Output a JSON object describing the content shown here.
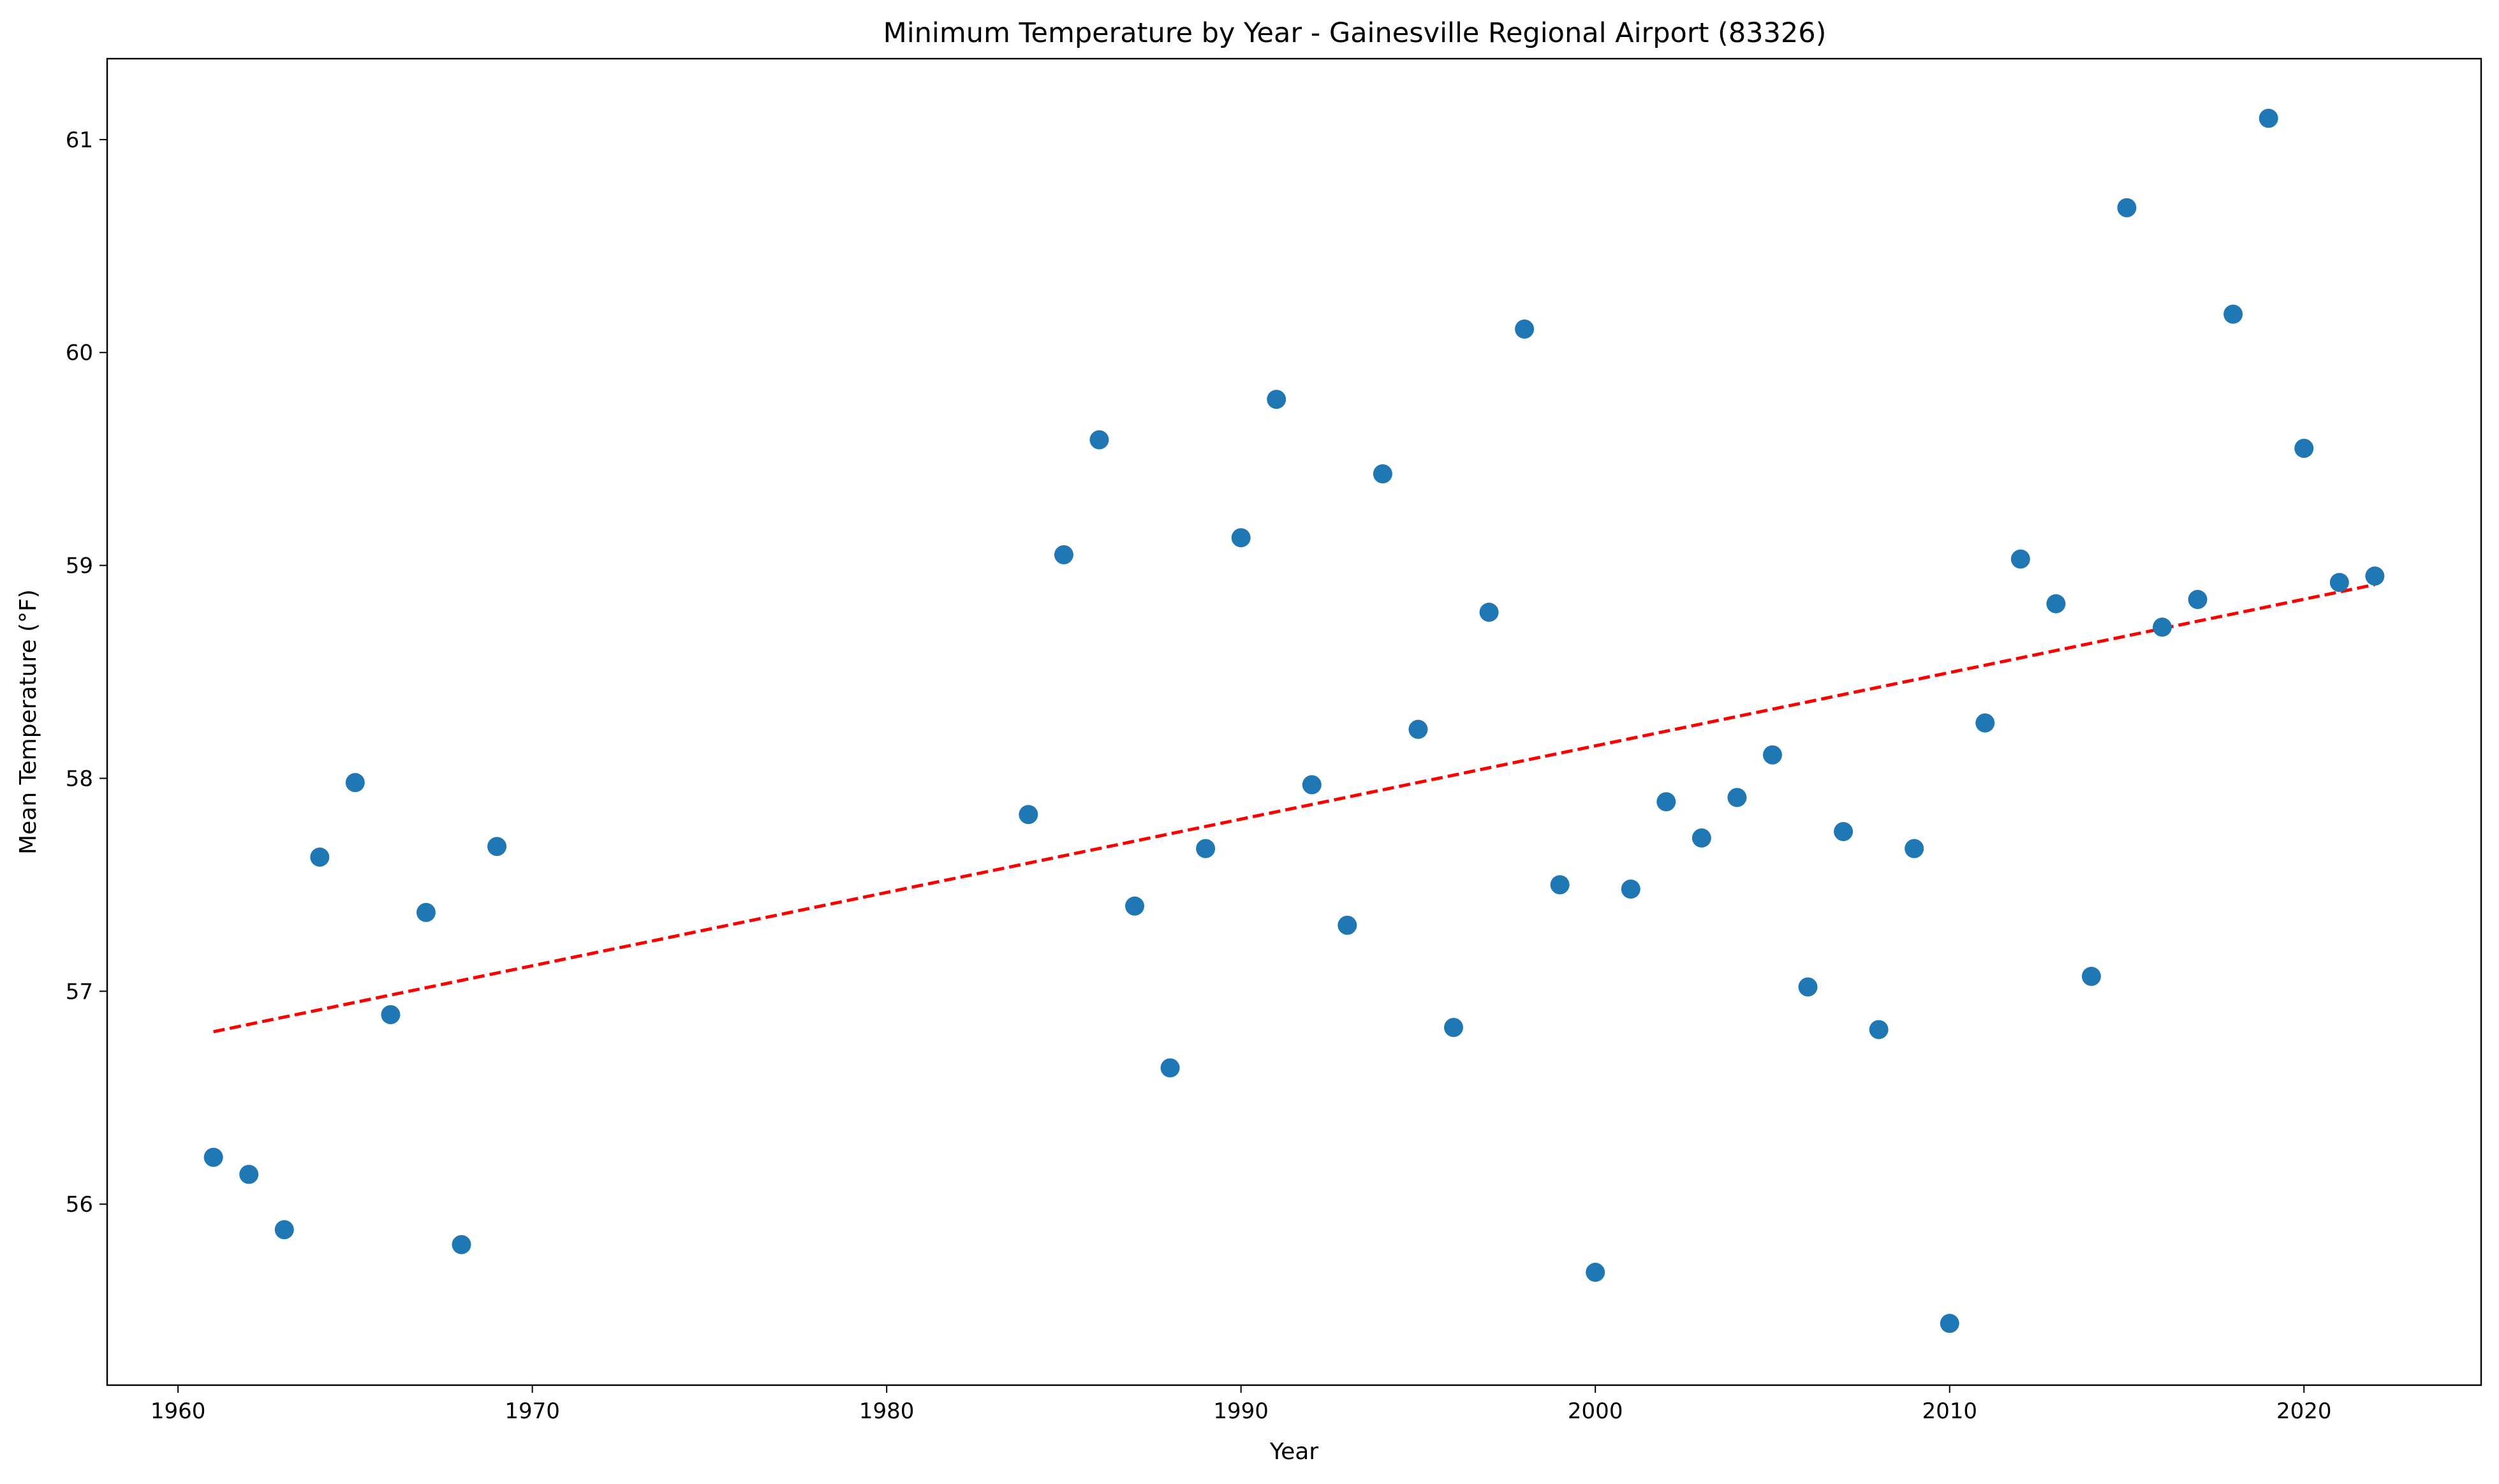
{
  "chart_data": {
    "type": "scatter",
    "title": "Minimum Temperature by Year - Gainesville Regional Airport (83326)",
    "xlabel": "Year",
    "ylabel": "Mean Temperature (°F)",
    "xlim": [
      1958,
      2025
    ],
    "ylim": [
      55.15,
      61.38
    ],
    "xticks": [
      1960,
      1970,
      1980,
      1990,
      2000,
      2010,
      2020
    ],
    "yticks": [
      56,
      57,
      58,
      59,
      60,
      61
    ],
    "grid": false,
    "legend": "none",
    "colors": {
      "points": "#1f77b4",
      "trend": "#ff0000"
    },
    "series": [
      {
        "x": [
          1961,
          1962,
          1963,
          1964,
          1965,
          1966,
          1967,
          1968,
          1969,
          1984,
          1985,
          1986,
          1987,
          1988,
          1989,
          1990,
          1991,
          1992,
          1993,
          1994,
          1995,
          1996,
          1997,
          1998,
          1999,
          2000,
          2001,
          2002,
          2003,
          2004,
          2005,
          2006,
          2007,
          2008,
          2009,
          2010,
          2011,
          2012,
          2013,
          2014,
          2015,
          2016,
          2017,
          2018,
          2019,
          2020,
          2021,
          2022
        ],
        "y": [
          56.22,
          56.14,
          55.88,
          57.63,
          57.98,
          56.89,
          57.37,
          55.81,
          57.68,
          57.83,
          59.05,
          59.59,
          57.4,
          56.64,
          57.67,
          59.13,
          59.78,
          57.97,
          57.31,
          59.43,
          58.23,
          56.83,
          58.78,
          60.11,
          57.5,
          55.68,
          57.48,
          57.89,
          57.72,
          57.91,
          58.11,
          57.02,
          57.75,
          56.82,
          57.67,
          55.44,
          58.26,
          59.03,
          58.82,
          57.07,
          60.68,
          58.71,
          58.84,
          60.18,
          61.1,
          59.55,
          58.92,
          58.95
        ]
      }
    ],
    "trendline": {
      "style": "dashed",
      "x": [
        1961,
        2022
      ],
      "y": [
        56.81,
        58.91
      ]
    }
  }
}
